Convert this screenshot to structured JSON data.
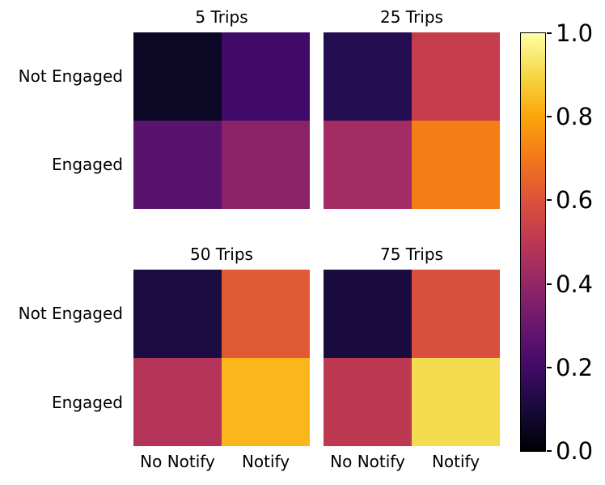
{
  "figure": {
    "background": "#ffffff",
    "colormap": "inferno"
  },
  "chart_data": {
    "type": "heatmap",
    "rows": [
      "Not Engaged",
      "Engaged"
    ],
    "columns": [
      "No Notify",
      "Notify"
    ],
    "value_range": [
      0.0,
      1.0
    ],
    "subplots": [
      {
        "title": "5 Trips",
        "values": [
          [
            0.07,
            0.2
          ],
          [
            0.26,
            0.35
          ]
        ],
        "colors": [
          [
            "#0b0724",
            "#420a68"
          ],
          [
            "#5a136d",
            "#8a2268"
          ]
        ]
      },
      {
        "title": "25 Trips",
        "values": [
          [
            0.14,
            0.55
          ],
          [
            0.41,
            0.71
          ]
        ],
        "colors": [
          [
            "#250d51",
            "#c53d4c"
          ],
          [
            "#a32c64",
            "#f57d15"
          ]
        ]
      },
      {
        "title": "50 Trips",
        "values": [
          [
            0.11,
            0.62
          ],
          [
            0.47,
            0.83
          ]
        ],
        "colors": [
          [
            "#1b0c41",
            "#e05a33"
          ],
          [
            "#b43358",
            "#fbb61b"
          ]
        ]
      },
      {
        "title": "75 Trips",
        "values": [
          [
            0.11,
            0.59
          ],
          [
            0.5,
            0.91
          ]
        ],
        "colors": [
          [
            "#1a0c3f",
            "#d94f3d"
          ],
          [
            "#bc3951",
            "#f5dc4e"
          ]
        ]
      }
    ],
    "colorbar": {
      "min": 0.0,
      "max": 1.0,
      "ticks": [
        {
          "label": "0.0",
          "value": 0.0
        },
        {
          "label": "0.2",
          "value": 0.2
        },
        {
          "label": "0.4",
          "value": 0.4
        },
        {
          "label": "0.6",
          "value": 0.6
        },
        {
          "label": "0.8",
          "value": 0.8
        },
        {
          "label": "1.0",
          "value": 1.0
        }
      ],
      "gradient_stops": [
        {
          "value": 0.0,
          "color": "#000004"
        },
        {
          "value": 0.1,
          "color": "#160b39"
        },
        {
          "value": 0.2,
          "color": "#420a68"
        },
        {
          "value": 0.3,
          "color": "#6a176e"
        },
        {
          "value": 0.4,
          "color": "#932667"
        },
        {
          "value": 0.5,
          "color": "#bc3754"
        },
        {
          "value": 0.6,
          "color": "#dd513a"
        },
        {
          "value": 0.7,
          "color": "#f37819"
        },
        {
          "value": 0.8,
          "color": "#fca50a"
        },
        {
          "value": 0.9,
          "color": "#f6d746"
        },
        {
          "value": 1.0,
          "color": "#fcffa4"
        }
      ]
    }
  }
}
